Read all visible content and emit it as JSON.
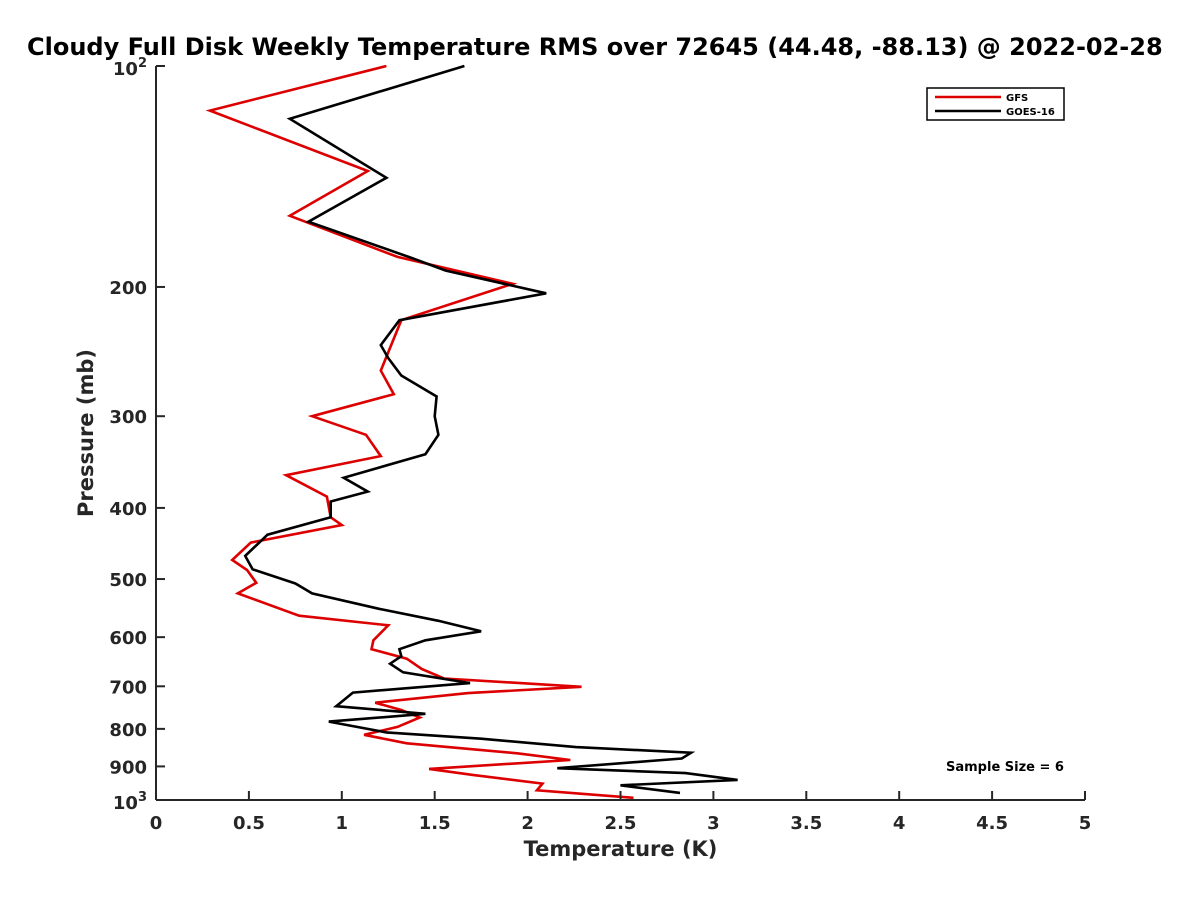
{
  "chart_data": {
    "type": "line",
    "title": "Cloudy Full Disk Weekly Temperature RMS over 72645 (44.48, -88.13) @ 2022-02-28",
    "xlabel": "Temperature (K)",
    "ylabel": "Pressure (mb)",
    "xlim": [
      0,
      5
    ],
    "ylim": [
      1000,
      100
    ],
    "y_scale": "log",
    "y_reversed": true,
    "x_ticks": [
      "0",
      "0.5",
      "1",
      "1.5",
      "2",
      "2.5",
      "3",
      "3.5",
      "4",
      "4.5",
      "5"
    ],
    "y_ticks": [
      {
        "value": 100,
        "base": "10",
        "exp": "2"
      },
      {
        "value": 200,
        "label": "200"
      },
      {
        "value": 300,
        "label": "300"
      },
      {
        "value": 400,
        "label": "400"
      },
      {
        "value": 500,
        "label": "500"
      },
      {
        "value": 600,
        "label": "600"
      },
      {
        "value": 700,
        "label": "700"
      },
      {
        "value": 800,
        "label": "800"
      },
      {
        "value": 900,
        "label": "900"
      },
      {
        "value": 1000,
        "base": "10",
        "exp": "3"
      }
    ],
    "grid": false,
    "legend_position": "top-right",
    "annotation": "Sample Size = 6",
    "series": [
      {
        "name": "GFS",
        "color": "#dd0000",
        "points": [
          [
            1.24,
            100
          ],
          [
            0.29,
            115
          ],
          [
            1.14,
            139
          ],
          [
            0.72,
            160
          ],
          [
            1.3,
            182
          ],
          [
            1.92,
            198
          ],
          [
            1.32,
            222
          ],
          [
            1.21,
            260
          ],
          [
            1.28,
            280
          ],
          [
            0.84,
            300
          ],
          [
            1.13,
            318
          ],
          [
            1.21,
            340
          ],
          [
            0.7,
            361
          ],
          [
            0.92,
            386
          ],
          [
            0.94,
            412
          ],
          [
            1.0,
            422
          ],
          [
            0.51,
            446
          ],
          [
            0.41,
            471
          ],
          [
            0.49,
            486
          ],
          [
            0.54,
            506
          ],
          [
            0.44,
            523
          ],
          [
            0.77,
            561
          ],
          [
            1.25,
            578
          ],
          [
            1.17,
            606
          ],
          [
            1.16,
            623
          ],
          [
            1.35,
            642
          ],
          [
            1.43,
            663
          ],
          [
            1.55,
            683
          ],
          [
            2.29,
            701
          ],
          [
            1.68,
            715
          ],
          [
            1.18,
            737
          ],
          [
            1.32,
            754
          ],
          [
            1.42,
            772
          ],
          [
            1.3,
            795
          ],
          [
            1.12,
            815
          ],
          [
            1.35,
            837
          ],
          [
            1.95,
            864
          ],
          [
            2.23,
            882
          ],
          [
            1.47,
            907
          ],
          [
            1.71,
            925
          ],
          [
            2.08,
            950
          ],
          [
            2.05,
            970
          ],
          [
            2.57,
            993
          ]
        ]
      },
      {
        "name": "GOES-16",
        "color": "#000000",
        "points": [
          [
            1.66,
            100
          ],
          [
            0.72,
            118
          ],
          [
            1.24,
            142
          ],
          [
            0.82,
            163
          ],
          [
            1.36,
            182
          ],
          [
            1.56,
            190
          ],
          [
            2.1,
            204
          ],
          [
            1.31,
            222
          ],
          [
            1.21,
            240
          ],
          [
            1.25,
            250
          ],
          [
            1.32,
            264
          ],
          [
            1.51,
            282
          ],
          [
            1.5,
            300
          ],
          [
            1.52,
            318
          ],
          [
            1.45,
            338
          ],
          [
            1.01,
            364
          ],
          [
            1.14,
            380
          ],
          [
            0.94,
            392
          ],
          [
            0.94,
            412
          ],
          [
            0.6,
            435
          ],
          [
            0.48,
            465
          ],
          [
            0.52,
            485
          ],
          [
            0.75,
            507
          ],
          [
            0.84,
            523
          ],
          [
            1.2,
            549
          ],
          [
            1.52,
            570
          ],
          [
            1.75,
            589
          ],
          [
            1.45,
            606
          ],
          [
            1.31,
            623
          ],
          [
            1.32,
            637
          ],
          [
            1.26,
            652
          ],
          [
            1.33,
            670
          ],
          [
            1.69,
            693
          ],
          [
            1.06,
            714
          ],
          [
            0.97,
            745
          ],
          [
            1.45,
            763
          ],
          [
            0.93,
            782
          ],
          [
            1.24,
            809
          ],
          [
            1.75,
            825
          ],
          [
            2.26,
            847
          ],
          [
            2.88,
            862
          ],
          [
            2.83,
            878
          ],
          [
            2.16,
            905
          ],
          [
            2.85,
            919
          ],
          [
            3.13,
            939
          ],
          [
            2.5,
            955
          ],
          [
            2.82,
            978
          ]
        ]
      }
    ]
  }
}
